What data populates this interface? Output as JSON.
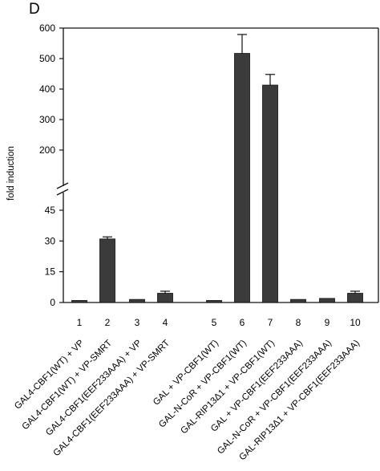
{
  "panel_label": "D",
  "colors": {
    "bar_fill": "#3b3b3b",
    "axis": "#111111",
    "background": "#ffffff"
  },
  "chart_data": {
    "type": "bar",
    "ylabel": "fold induction",
    "y_axis": {
      "broken": true,
      "lower_segment": {
        "range": [
          0,
          45
        ],
        "ticks": [
          0,
          15,
          30,
          45
        ]
      },
      "upper_segment": {
        "range": [
          200,
          600
        ],
        "ticks": [
          200,
          300,
          400,
          500,
          600
        ]
      }
    },
    "categories": [
      {
        "number": "1",
        "label": "GAL4-CBF1(WT) + VP"
      },
      {
        "number": "2",
        "label": "GAL4-CBF1(WT) + VP-SMRT"
      },
      {
        "number": "3",
        "label": "GAL4-CBF1(EEF233AAA) + VP"
      },
      {
        "number": "4",
        "label": "GAL4-CBF1(EEF233AAA) + VP-SMRT"
      },
      {
        "number": "5",
        "label": "GAL + VP-CBF1(WT)"
      },
      {
        "number": "6",
        "label": "GAL-N-CoR + VP-CBF1(WT)"
      },
      {
        "number": "7",
        "label": "GAL-RIP13Δ1 + VP-CBF1(WT)"
      },
      {
        "number": "8",
        "label": "GAL + VP-CBF1(EEF233AAA)"
      },
      {
        "number": "9",
        "label": "GAL-N-CoR + VP-CBF1(EEF233AAA)"
      },
      {
        "number": "10",
        "label": "GAL-RIP13Δ1 + VP-CBF1(EEF233AAA)"
      }
    ],
    "values": [
      1,
      31,
      1.5,
      4.5,
      1,
      517,
      413,
      1.5,
      2,
      4.5
    ],
    "errors": [
      0,
      1,
      0,
      1,
      0,
      62,
      35,
      0,
      0,
      1
    ],
    "grid": false,
    "legend": "none"
  }
}
